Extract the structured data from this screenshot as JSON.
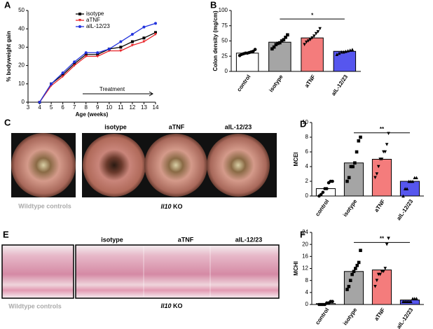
{
  "chart_data": [
    {
      "type": "line",
      "panel": "A",
      "xlabel": "Age (weeks)",
      "ylabel": "% bodyweight gain",
      "annotation": "Treatment",
      "x": [
        4,
        5,
        6,
        7,
        8,
        9,
        10,
        11,
        12,
        13,
        14
      ],
      "xlim": [
        3,
        14
      ],
      "xticks": [
        3,
        4,
        5,
        6,
        7,
        8,
        9,
        10,
        11,
        12,
        13,
        14
      ],
      "ylim": [
        0,
        50
      ],
      "yticks": [
        0,
        10,
        20,
        30,
        40,
        50
      ],
      "series": [
        {
          "name": "isotype",
          "color": "#000000",
          "values": [
            0,
            10,
            15,
            21,
            26,
            26,
            29,
            30,
            33,
            35,
            38
          ]
        },
        {
          "name": "aTNF",
          "color": "#e8262b",
          "values": [
            0,
            9,
            14,
            20,
            25,
            25,
            28,
            28,
            31,
            33,
            37
          ]
        },
        {
          "name": "aIL-12/23",
          "color": "#2233dd",
          "values": [
            0,
            10,
            16,
            22,
            27,
            27,
            29,
            33,
            37,
            41,
            43
          ]
        }
      ]
    },
    {
      "type": "bar",
      "panel": "B",
      "ylabel": "Colon density (mg/cm)",
      "categories": [
        "control",
        "isotype",
        "aTNF",
        "aIL-12/23"
      ],
      "values": [
        30,
        48,
        55,
        33
      ],
      "colors": [
        "#ffffff",
        "#a5a5a5",
        "#f47c7c",
        "#5656ee"
      ],
      "markers": [
        "circle",
        "square",
        "triangle-down",
        "triangle"
      ],
      "points": [
        [
          26,
          28,
          29,
          30,
          30,
          31,
          32,
          33,
          36
        ],
        [
          37,
          40,
          44,
          46,
          47,
          50,
          52,
          56,
          60
        ],
        [
          44,
          48,
          50,
          52,
          55,
          58,
          62,
          65,
          70
        ],
        [
          28,
          30,
          32,
          32,
          33,
          34,
          35,
          36
        ]
      ],
      "ylim": [
        0,
        100
      ],
      "yticks": [
        0,
        25,
        50,
        75,
        100
      ],
      "significance": {
        "label": "*",
        "from": 1,
        "to": 3
      }
    },
    {
      "type": "bar",
      "panel": "D",
      "ylabel": "MCEI",
      "categories": [
        "control",
        "isotype",
        "aTNF",
        "aIL-12/23"
      ],
      "values": [
        1,
        4.5,
        5,
        2
      ],
      "colors": [
        "#ffffff",
        "#a5a5a5",
        "#f47c7c",
        "#5656ee"
      ],
      "markers": [
        "circle",
        "square",
        "triangle-down",
        "triangle"
      ],
      "points": [
        [
          0,
          0.2,
          0.5,
          1,
          1,
          1.8,
          2,
          2
        ],
        [
          2,
          2.5,
          4,
          4,
          4.5,
          6,
          7.5,
          8
        ],
        [
          2.5,
          3,
          4,
          5,
          5,
          6,
          6,
          7,
          8.5
        ],
        [
          0,
          1,
          1,
          2,
          2,
          2,
          2.5,
          2.5
        ]
      ],
      "ylim": [
        0,
        10
      ],
      "yticks": [
        0,
        2,
        4,
        6,
        8,
        10
      ],
      "significance": {
        "label": "**",
        "from": 1,
        "to": 3
      }
    },
    {
      "type": "bar",
      "panel": "F",
      "ylabel": "MCHI",
      "categories": [
        "control",
        "isotype",
        "aTNF",
        "aIL-12/23"
      ],
      "values": [
        0.3,
        11,
        11.5,
        1.5
      ],
      "colors": [
        "#ffffff",
        "#a5a5a5",
        "#f47c7c",
        "#5656ee"
      ],
      "markers": [
        "circle",
        "square",
        "triangle-down",
        "triangle"
      ],
      "points": [
        [
          0,
          0,
          0,
          0,
          0.5,
          0.5,
          1,
          1
        ],
        [
          5,
          6,
          8,
          10,
          11,
          12,
          13,
          14,
          18
        ],
        [
          6,
          8,
          10,
          10,
          11,
          11,
          12,
          20,
          22
        ],
        [
          1,
          1,
          1,
          1,
          1,
          2,
          2,
          2
        ]
      ],
      "ylim": [
        0,
        24
      ],
      "yticks": [
        0,
        4,
        8,
        12,
        16,
        20,
        24
      ],
      "significance": {
        "label": "**",
        "from": 1,
        "to": 3
      }
    }
  ],
  "panel_c": {
    "panel": "C",
    "labels": [
      "isotype",
      "aTNF",
      "aIL-12/23"
    ],
    "control_label": "Wildtype controls",
    "ko_gene": "Il10",
    "ko_suffix": "KO"
  },
  "panel_e": {
    "panel": "E",
    "labels": [
      "isotype",
      "aTNF",
      "aIL-12/23"
    ],
    "control_label": "Wildtype controls",
    "ko_gene": "Il10",
    "ko_suffix": "KO"
  }
}
